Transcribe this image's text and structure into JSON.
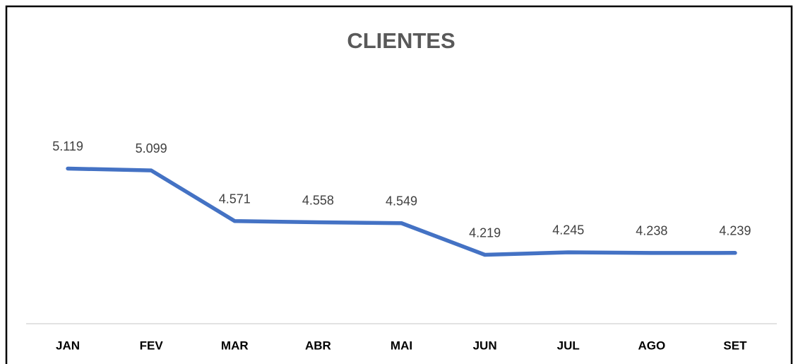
{
  "chart_data": {
    "type": "line",
    "title": "CLIENTES",
    "categories": [
      "JAN",
      "FEV",
      "MAR",
      "ABR",
      "MAI",
      "JUN",
      "JUL",
      "AGO",
      "SET"
    ],
    "series": [
      {
        "color": "#4472c4",
        "values": [
          5119,
          5099,
          4571,
          4558,
          4549,
          4219,
          4245,
          4238,
          4239
        ],
        "value_labels": [
          "5.119",
          "5.099",
          "4.571",
          "4.558",
          "4.549",
          "4.219",
          "4.245",
          "4.238",
          "4.239"
        ]
      }
    ],
    "ylim": [
      3500,
      6000
    ]
  }
}
